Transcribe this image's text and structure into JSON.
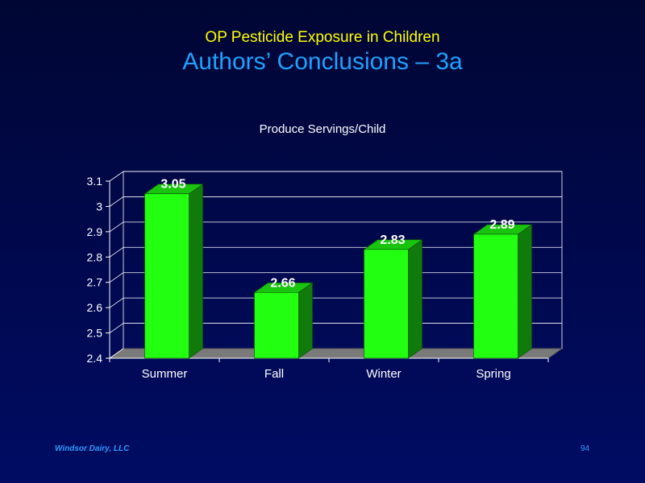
{
  "slide": {
    "subtitle": "OP Pesticide Exposure in Children",
    "title": "Authors’ Conclusions – 3a",
    "footer_left": "Windsor Dairy, LLC",
    "page_number": "94"
  },
  "colors": {
    "bar_front": "#22ff11",
    "bar_side": "#107a0a",
    "bar_top": "#19c40f",
    "floor": "#7a7a7a",
    "axis_text": "#ffffff",
    "grid": "#ffffff"
  },
  "chart_data": {
    "type": "bar",
    "title": "Produce Servings/Child",
    "categories": [
      "Summer",
      "Fall",
      "Winter",
      "Spring"
    ],
    "values": [
      3.05,
      2.66,
      2.83,
      2.89
    ],
    "data_labels": [
      "3.05",
      "2.66",
      "2.83",
      "2.89"
    ],
    "ylim": [
      2.4,
      3.1
    ],
    "yticks": [
      "2.4",
      "2.5",
      "2.6",
      "2.7",
      "2.8",
      "2.9",
      "3",
      "3.1"
    ],
    "xlabel": "",
    "ylabel": "",
    "grid": true,
    "style": "3d"
  }
}
